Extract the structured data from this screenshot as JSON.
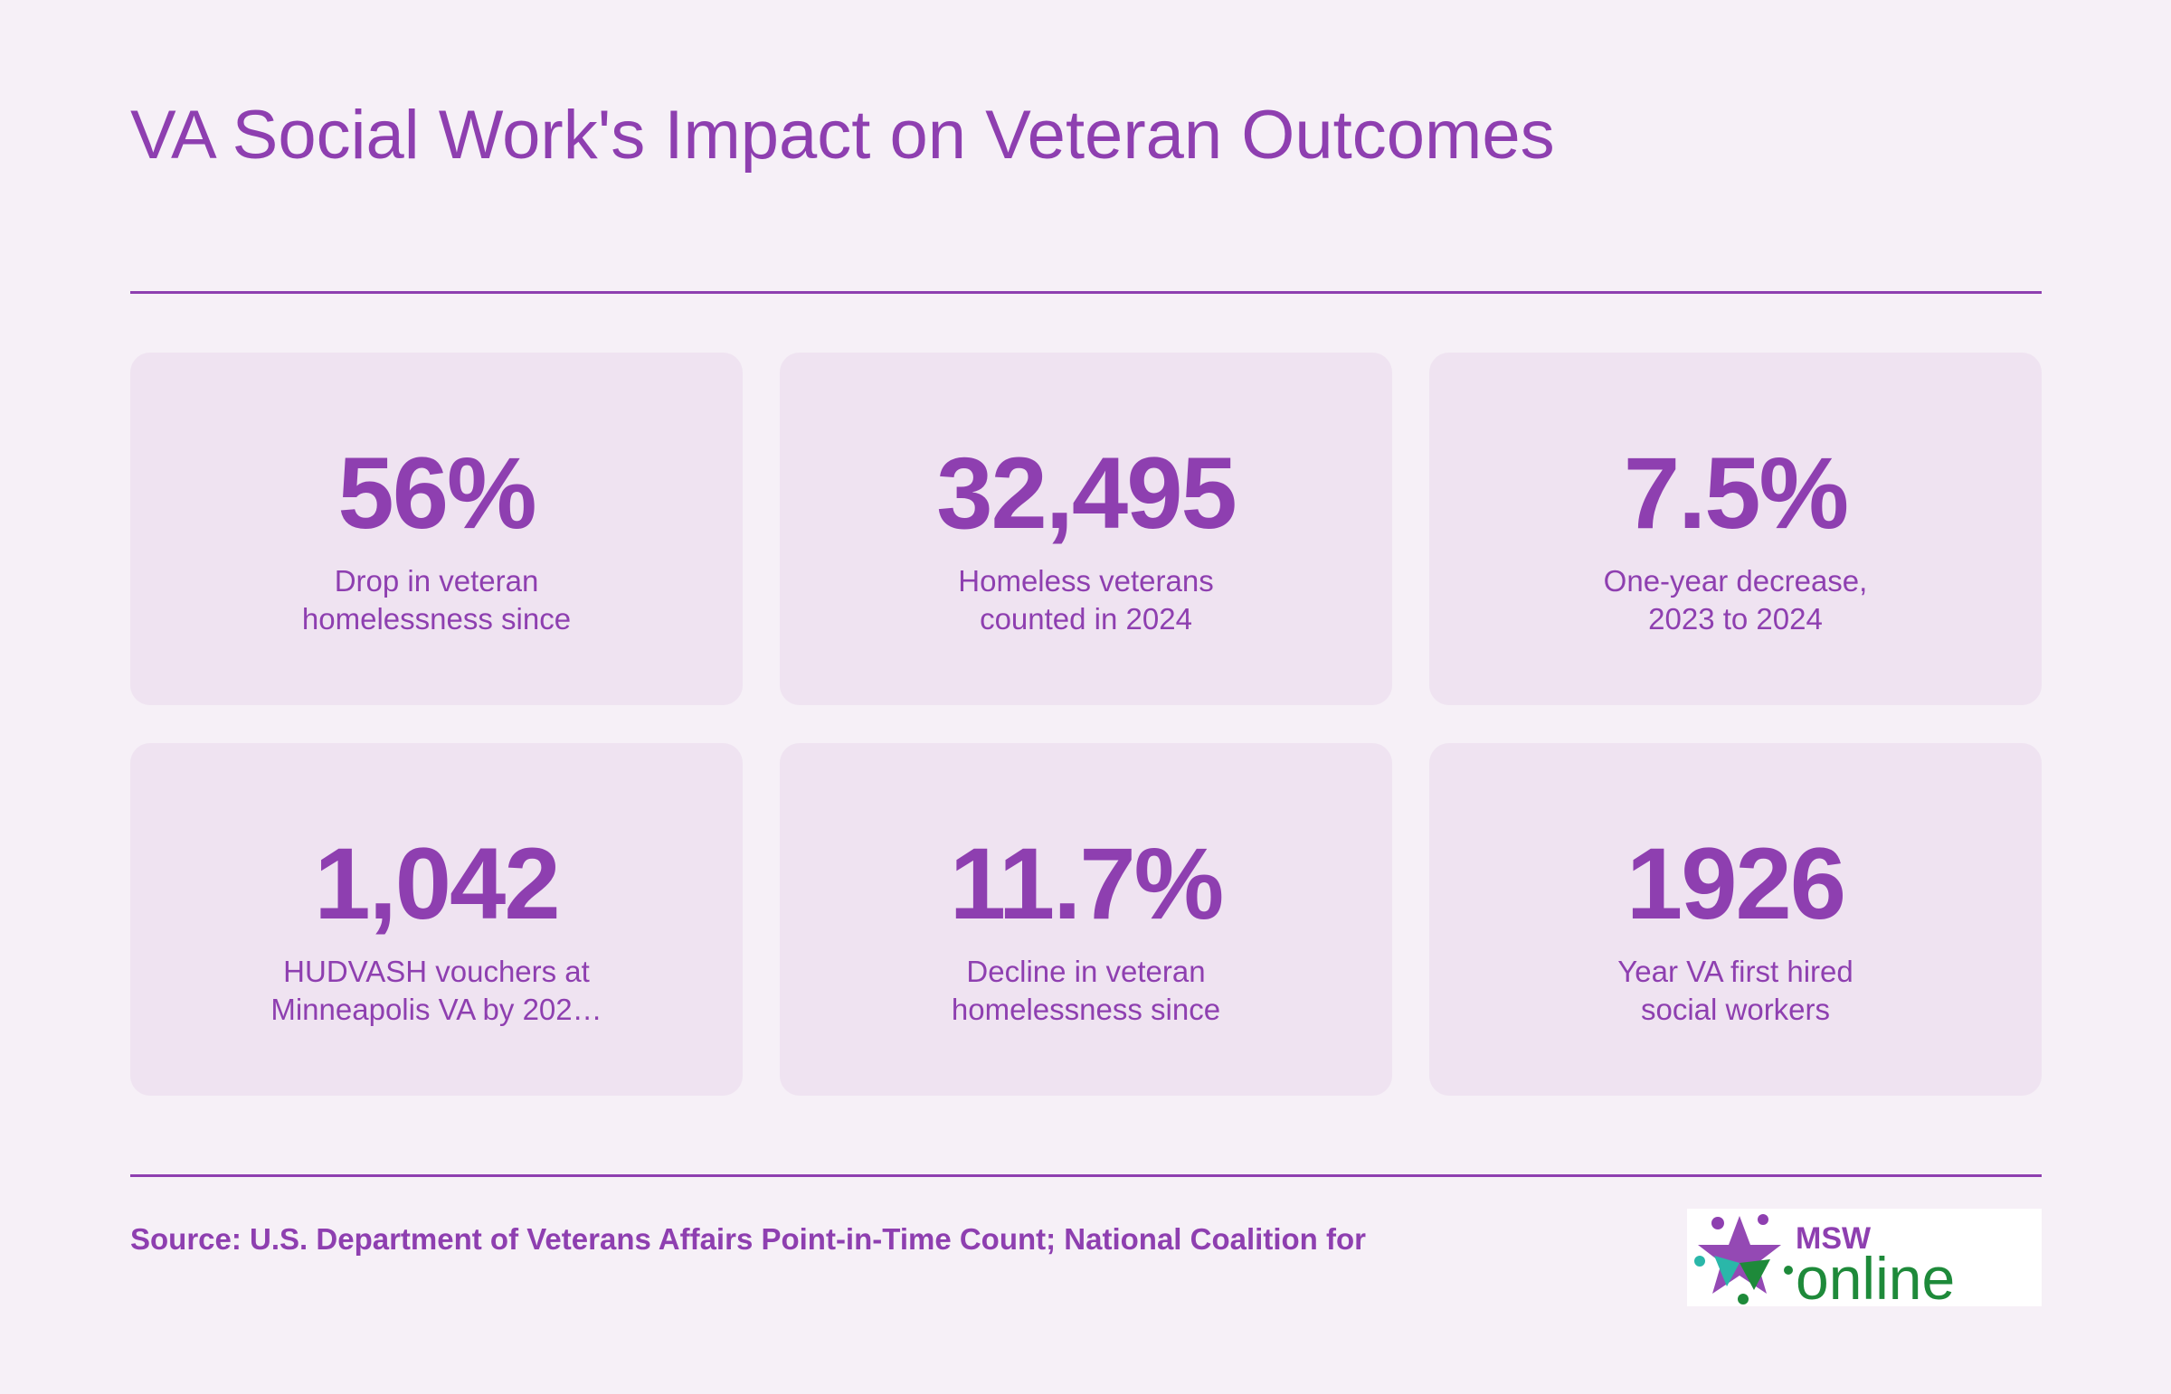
{
  "page": {
    "title": "VA Social Work's Impact on Veteran Outcomes"
  },
  "stats": [
    {
      "value": "56%",
      "label_line1": "Drop in veteran",
      "label_line2": "homelessness since"
    },
    {
      "value": "32,495",
      "label_line1": "Homeless veterans",
      "label_line2": "counted in 2024"
    },
    {
      "value": "7.5%",
      "label_line1": "One-year decrease,",
      "label_line2": "2023 to 2024"
    },
    {
      "value": "1,042",
      "label_line1": "HUDVASH vouchers at",
      "label_line2": "Minneapolis VA by 202…"
    },
    {
      "value": "11.7%",
      "label_line1": "Decline in veteran",
      "label_line2": "homelessness since"
    },
    {
      "value": "1926",
      "label_line1": "Year VA first hired",
      "label_line2": "social workers"
    }
  ],
  "footer": {
    "source": "Source: U.S. Department of Veterans Affairs Point-in-Time Count; National Coalition for"
  },
  "logo": {
    "msw": "MSW",
    "online": "online"
  },
  "colors": {
    "accent": "#8e3fb0",
    "background": "#f6f0f7",
    "card": "#efe3f1",
    "logo_green": "#1e8a3a",
    "logo_teal": "#2ab7a9"
  }
}
